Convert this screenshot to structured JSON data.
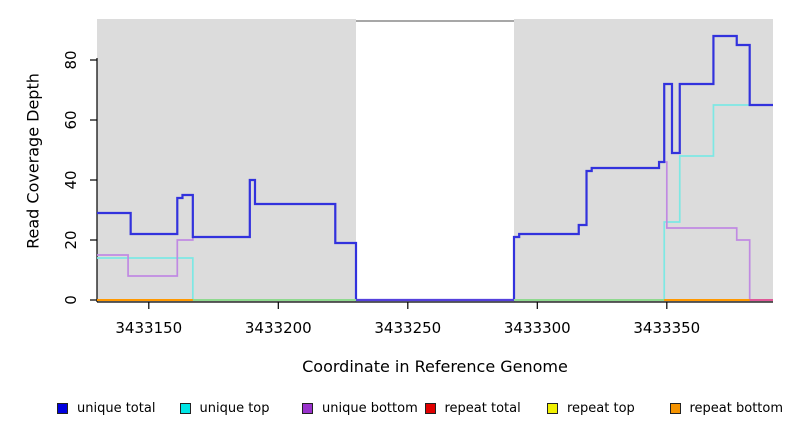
{
  "figure": {
    "background": "#ffffff",
    "panel_color": "#dcdcdc",
    "axis_color": "#000000",
    "gap_border_color": "#8a8a8a"
  },
  "chart_data": {
    "type": "line",
    "title": "",
    "xlabel": "Coordinate in Reference Genome",
    "ylabel": "Read Coverage Depth",
    "xlim": [
      3433130,
      3433391
    ],
    "ylim": [
      0,
      93
    ],
    "x_ticks": [
      3433150,
      3433200,
      3433250,
      3433300,
      3433350
    ],
    "y_ticks": [
      0,
      20,
      40,
      60,
      80
    ],
    "grid": false,
    "legend_position": "bottom",
    "shaded_regions": [
      {
        "from": 3433130,
        "to": 3433230,
        "color": "#dcdcdc"
      },
      {
        "from": 3433291,
        "to": 3433391,
        "color": "#dcdcdc"
      }
    ],
    "gap_region": {
      "from": 3433230,
      "to": 3433291
    },
    "series": [
      {
        "name": "unique top",
        "color": "#7de8e4",
        "width": 1.7,
        "points": [
          [
            3433130,
            14
          ],
          [
            3433167,
            0
          ],
          [
            3433349,
            26
          ],
          [
            3433355,
            48
          ],
          [
            3433368,
            65
          ],
          [
            3433391,
            65
          ]
        ]
      },
      {
        "name": "unique bottom",
        "color": "#c08ae2",
        "width": 1.7,
        "points": [
          [
            3433130,
            15
          ],
          [
            3433142,
            8
          ],
          [
            3433161,
            20
          ],
          [
            3433167,
            21
          ],
          [
            3433189,
            40
          ],
          [
            3433191,
            32
          ],
          [
            3433222,
            19
          ],
          [
            3433230,
            0
          ],
          [
            3433291,
            21
          ],
          [
            3433293,
            22
          ],
          [
            3433316,
            25
          ],
          [
            3433319,
            43
          ],
          [
            3433321,
            44
          ],
          [
            3433347,
            46
          ],
          [
            3433350,
            24
          ],
          [
            3433377,
            20
          ],
          [
            3433382,
            0
          ],
          [
            3433391,
            0
          ]
        ]
      },
      {
        "name": "unique total",
        "color": "#3232dd",
        "width": 2.2,
        "points": [
          [
            3433130,
            29
          ],
          [
            3433143,
            22
          ],
          [
            3433161,
            34
          ],
          [
            3433163,
            35
          ],
          [
            3433167,
            21
          ],
          [
            3433189,
            40
          ],
          [
            3433191,
            32
          ],
          [
            3433222,
            19
          ],
          [
            3433230,
            0
          ],
          [
            3433291,
            21
          ],
          [
            3433293,
            22
          ],
          [
            3433316,
            25
          ],
          [
            3433319,
            43
          ],
          [
            3433321,
            44
          ],
          [
            3433347,
            46
          ],
          [
            3433349,
            72
          ],
          [
            3433352,
            49
          ],
          [
            3433355,
            72
          ],
          [
            3433368,
            88
          ],
          [
            3433377,
            85
          ],
          [
            3433382,
            65
          ],
          [
            3433391,
            65
          ]
        ]
      },
      {
        "name": "repeat total",
        "color": "#e00000",
        "width": 1.7,
        "points": [
          [
            3433130,
            0
          ],
          [
            3433391,
            0
          ]
        ]
      },
      {
        "name": "repeat top",
        "color": "#f0f000",
        "width": 1.7,
        "points": [
          [
            3433130,
            0
          ],
          [
            3433391,
            0
          ]
        ]
      },
      {
        "name": "repeat bottom",
        "color": "#ff9800",
        "width": 1.7,
        "points": [
          [
            3433130,
            0
          ],
          [
            3433391,
            0
          ]
        ]
      }
    ],
    "baseline_segments": [
      {
        "from": 3433130,
        "to": 3433167,
        "color": "#ff9800"
      },
      {
        "from": 3433167,
        "to": 3433230,
        "color": "#8fd98f"
      },
      {
        "from": 3433230,
        "to": 3433291,
        "color": "#5540dd"
      },
      {
        "from": 3433291,
        "to": 3433349,
        "color": "#8fd98f"
      },
      {
        "from": 3433349,
        "to": 3433382,
        "color": "#ff9800"
      },
      {
        "from": 3433382,
        "to": 3433391,
        "color": "#e05898"
      }
    ]
  },
  "legend": {
    "items": [
      {
        "label": "unique total",
        "color": "#0000e0"
      },
      {
        "label": "unique top",
        "color": "#00e5e5"
      },
      {
        "label": "unique bottom",
        "color": "#9932cc"
      },
      {
        "label": "repeat total",
        "color": "#e00000"
      },
      {
        "label": "repeat top",
        "color": "#f0f000"
      },
      {
        "label": "repeat bottom",
        "color": "#f59300"
      }
    ]
  }
}
